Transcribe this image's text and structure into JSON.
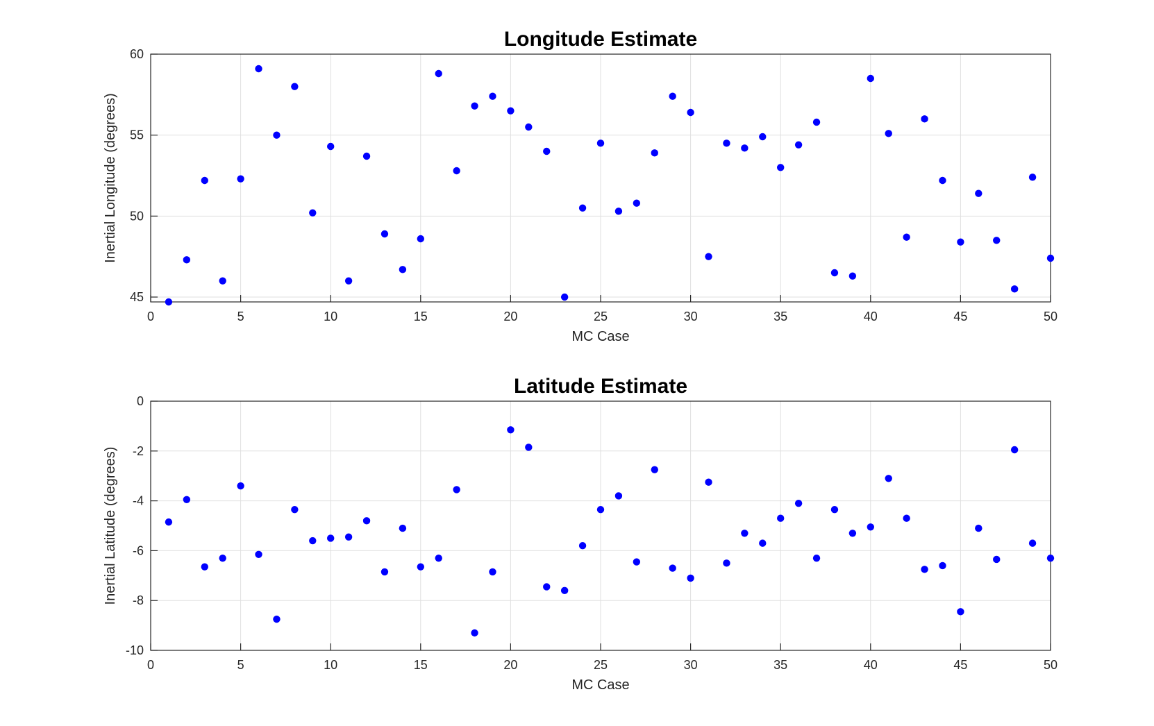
{
  "chart_data": [
    {
      "type": "scatter",
      "title": "Longitude Estimate",
      "xlabel": "MC Case",
      "ylabel": "Inertial Longitude (degrees)",
      "xlim": [
        0,
        50
      ],
      "ylim": [
        44.7,
        60
      ],
      "xticks": [
        0,
        5,
        10,
        15,
        20,
        25,
        30,
        35,
        40,
        45,
        50
      ],
      "yticks": [
        45,
        50,
        55,
        60
      ],
      "grid": true,
      "marker_color": "#0000ff",
      "series": [
        {
          "x": [
            1,
            2,
            3,
            4,
            5,
            6,
            7,
            8,
            9,
            10,
            11,
            12,
            13,
            14,
            15,
            16,
            17,
            18,
            19,
            20,
            21,
            22,
            23,
            24,
            25,
            26,
            27,
            28,
            29,
            30,
            31,
            32,
            33,
            34,
            35,
            36,
            37,
            38,
            39,
            40,
            41,
            42,
            43,
            44,
            45,
            46,
            47,
            48,
            49,
            50
          ],
          "values": [
            44.7,
            47.3,
            52.2,
            46.0,
            52.3,
            59.1,
            55.0,
            58.0,
            50.2,
            54.3,
            46.0,
            53.7,
            48.9,
            46.7,
            48.6,
            58.8,
            52.8,
            56.8,
            57.4,
            56.5,
            55.5,
            54.0,
            45.0,
            50.5,
            54.5,
            50.3,
            50.8,
            53.9,
            57.4,
            56.4,
            47.5,
            54.5,
            54.2,
            54.9,
            53.0,
            54.4,
            55.8,
            46.5,
            46.3,
            58.5,
            55.1,
            48.7,
            56.0,
            52.2,
            48.4,
            51.4,
            48.5,
            45.5,
            52.4,
            47.4
          ]
        }
      ]
    },
    {
      "type": "scatter",
      "title": "Latitude Estimate",
      "xlabel": "MC Case",
      "ylabel": "Inertial Latitude (degrees)",
      "xlim": [
        0,
        50
      ],
      "ylim": [
        -10,
        0
      ],
      "xticks": [
        0,
        5,
        10,
        15,
        20,
        25,
        30,
        35,
        40,
        45,
        50
      ],
      "yticks": [
        -10,
        -8,
        -6,
        -4,
        -2,
        0
      ],
      "grid": true,
      "marker_color": "#0000ff",
      "series": [
        {
          "x": [
            1,
            2,
            3,
            4,
            5,
            6,
            7,
            8,
            9,
            10,
            11,
            12,
            13,
            14,
            15,
            16,
            17,
            18,
            19,
            20,
            21,
            22,
            23,
            24,
            25,
            26,
            27,
            28,
            29,
            30,
            31,
            32,
            33,
            34,
            35,
            36,
            37,
            38,
            39,
            40,
            41,
            42,
            43,
            44,
            45,
            46,
            47,
            48,
            49,
            50
          ],
          "values": [
            -4.85,
            -3.95,
            -6.65,
            -6.3,
            -3.4,
            -6.15,
            -8.75,
            -4.35,
            -5.6,
            -5.5,
            -5.45,
            -4.8,
            -6.85,
            -5.1,
            -6.65,
            -6.3,
            -3.55,
            -9.3,
            -6.85,
            -1.15,
            -1.85,
            -7.45,
            -7.6,
            -5.8,
            -4.35,
            -3.8,
            -6.45,
            -2.75,
            -6.7,
            -7.1,
            -3.25,
            -6.5,
            -5.3,
            -5.7,
            -4.7,
            -4.1,
            -6.3,
            -4.35,
            -5.3,
            -5.05,
            -3.1,
            -4.7,
            -6.75,
            -6.6,
            -8.45,
            -5.1,
            -6.35,
            -1.95,
            -5.7,
            -6.3
          ]
        }
      ]
    }
  ]
}
